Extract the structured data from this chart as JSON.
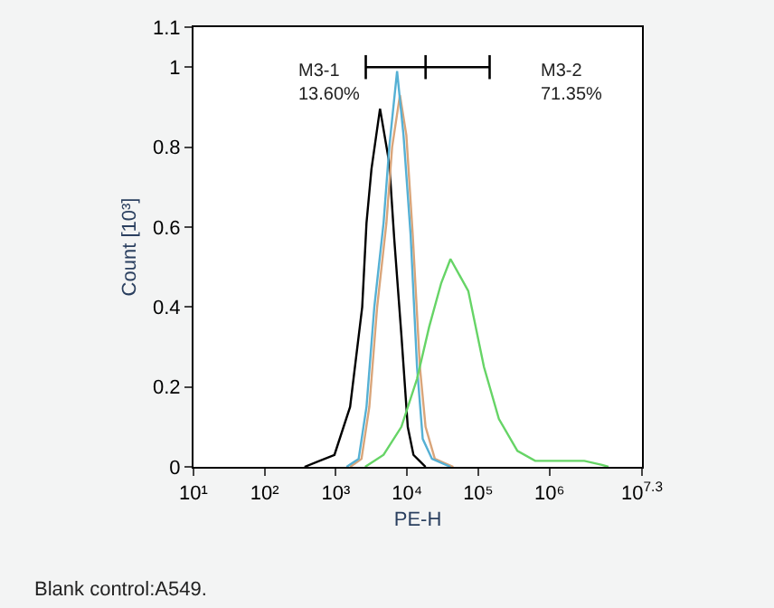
{
  "chart_data": {
    "type": "line",
    "xlabel": "PE-H",
    "ylabel": "Count [10³]",
    "log": "x",
    "xlim": [
      10,
      19952623
    ],
    "xticks": [
      {
        "value": 10,
        "label": "10¹"
      },
      {
        "value": 100,
        "label": "10²"
      },
      {
        "value": 1000,
        "label": "10³"
      },
      {
        "value": 10000,
        "label": "10⁴"
      },
      {
        "value": 100000,
        "label": "10⁵"
      },
      {
        "value": 1000000,
        "label": "10⁶"
      },
      {
        "value": 19952623,
        "label": "10$^{7.3}$"
      }
    ],
    "ylim": [
      0,
      1.1
    ],
    "yticks": [
      0,
      0.2,
      0.4,
      0.6,
      0.8,
      1,
      1.1
    ],
    "series": [
      {
        "color": "#000000",
        "x": [
          363,
          955,
          1585,
          2344,
          2692,
          3162,
          4169,
          5623,
          6607,
          8318,
          10230,
          12300,
          18200
        ],
        "values": [
          0,
          0.03,
          0.15,
          0.4,
          0.61,
          0.745,
          0.896,
          0.76,
          0.57,
          0.33,
          0.1,
          0.03,
          0
        ]
      },
      {
        "color": "#d9a57a",
        "x": [
          1585,
          2291,
          2951,
          3802,
          5129,
          6166,
          7943,
          9772,
          12020,
          15140,
          18200,
          24550,
          44670
        ],
        "values": [
          0,
          0.02,
          0.15,
          0.4,
          0.61,
          0.8,
          0.93,
          0.83,
          0.58,
          0.25,
          0.1,
          0.02,
          0
        ]
      },
      {
        "color": "#55b0d4",
        "x": [
          1413,
          2089,
          2692,
          3467,
          4677,
          5623,
          7244,
          8913,
          11220,
          13800,
          16600,
          22390,
          40740
        ],
        "values": [
          0,
          0.02,
          0.15,
          0.4,
          0.61,
          0.8,
          0.99,
          0.83,
          0.58,
          0.25,
          0.07,
          0.02,
          0
        ]
      },
      {
        "color": "#66d466",
        "x": [
          2570,
          4677,
          8318,
          13800,
          20420,
          30200,
          40740,
          72440,
          120200,
          195000,
          354800,
          631000,
          1698000,
          3090000,
          5495000,
          6761000
        ],
        "values": [
          0,
          0.03,
          0.1,
          0.22,
          0.35,
          0.46,
          0.52,
          0.44,
          0.25,
          0.12,
          0.04,
          0.015,
          0.015,
          0.015,
          0.005,
          0
        ]
      },
      {
        "color": "#000000",
        "x": [
          2630,
          18200,
          144500
        ],
        "values": [
          1,
          1,
          1
        ],
        "errors": [
          0.03,
          0.03,
          0.03
        ]
      }
    ],
    "annotations": [
      "M3-1\n13.60%",
      "M3-2\n71.35%",
      "Blank control:A549."
    ]
  }
}
